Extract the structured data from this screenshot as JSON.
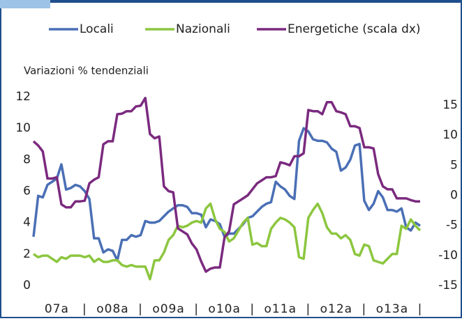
{
  "chart_data": {
    "type": "line",
    "subtitle": "Variazioni % tendenziali",
    "categories": [
      null,
      null,
      null,
      null,
      null,
      "07a",
      null,
      null,
      null,
      null,
      null,
      "|",
      null,
      null,
      null,
      null,
      null,
      "o08a",
      null,
      null,
      null,
      null,
      null,
      "|",
      null,
      null,
      null,
      null,
      null,
      "o09a",
      null,
      null,
      null,
      null,
      null,
      "|",
      null,
      null,
      null,
      null,
      null,
      "o10a",
      null,
      null,
      null,
      null,
      null,
      "|",
      null,
      null,
      null,
      null,
      null,
      "o11a",
      null,
      null,
      null,
      null,
      null,
      "|",
      null,
      null,
      null,
      null,
      null,
      "o12a",
      null,
      null,
      null,
      null,
      null,
      "|",
      null,
      null,
      null,
      null,
      null,
      "o13a",
      null,
      null,
      null,
      null,
      null,
      "|"
    ],
    "series": [
      {
        "name": "Locali",
        "color": "#4a6fb5",
        "axis": "y",
        "values": [
          3.1,
          5.7,
          5.6,
          6.4,
          6.6,
          6.8,
          7.7,
          6.1,
          6.2,
          6.4,
          6.3,
          6.0,
          5.5,
          3.0,
          3.0,
          2.1,
          2.3,
          2.2,
          1.6,
          2.9,
          2.9,
          3.2,
          3.1,
          3.2,
          4.1,
          4.0,
          4.0,
          4.1,
          4.4,
          4.7,
          4.9,
          5.1,
          5.1,
          5.0,
          4.6,
          4.6,
          4.5,
          3.7,
          4.2,
          4.1,
          3.9,
          3.1,
          3.3,
          3.3,
          3.6,
          3.9,
          4.3,
          4.4,
          4.7,
          5.0,
          5.2,
          5.3,
          6.6,
          6.3,
          6.1,
          5.7,
          5.5,
          9.2,
          10.0,
          9.8,
          9.3,
          9.2,
          9.2,
          9.1,
          8.7,
          8.5,
          7.3,
          7.5,
          8.0,
          8.9,
          9.0,
          5.4,
          4.8,
          5.2,
          6.0,
          5.6,
          4.8,
          4.8,
          4.7,
          4.9,
          3.7,
          3.5,
          4.0,
          3.8
        ]
      },
      {
        "name": "Nazionali",
        "color": "#8cc63f",
        "axis": "y",
        "values": [
          2.0,
          1.8,
          1.9,
          1.9,
          1.7,
          1.5,
          1.8,
          1.7,
          1.9,
          1.9,
          1.9,
          1.8,
          1.9,
          1.5,
          1.7,
          1.5,
          1.5,
          1.6,
          1.6,
          1.3,
          1.2,
          1.3,
          1.2,
          1.2,
          1.2,
          0.4,
          1.6,
          1.6,
          2.1,
          2.9,
          3.2,
          3.8,
          3.7,
          3.8,
          4.0,
          4.1,
          4.0,
          4.9,
          5.2,
          4.2,
          3.6,
          3.4,
          2.8,
          3.0,
          3.5,
          4.0,
          4.3,
          2.6,
          2.7,
          2.5,
          2.5,
          3.6,
          4.0,
          4.3,
          4.2,
          4.0,
          3.7,
          1.8,
          1.7,
          4.3,
          4.8,
          5.2,
          4.6,
          3.7,
          3.3,
          3.3,
          3.0,
          3.2,
          2.9,
          2.0,
          1.9,
          2.6,
          2.5,
          1.6,
          1.5,
          1.4,
          1.7,
          2.0,
          2.0,
          3.8,
          3.6,
          4.2,
          3.8,
          3.5
        ]
      },
      {
        "name": "Energetiche (scala dx)",
        "color": "#7b2a7f",
        "axis": "y2",
        "values": [
          9.0,
          8.3,
          7.3,
          2.8,
          2.8,
          3.0,
          -1.5,
          -2.0,
          -2.0,
          -1.0,
          -1.0,
          -0.9,
          2.0,
          2.6,
          3.0,
          8.5,
          9.0,
          9.0,
          13.5,
          13.6,
          14.0,
          14.0,
          14.8,
          14.9,
          16.2,
          10.2,
          9.5,
          9.8,
          1.5,
          0.7,
          0.5,
          -5.5,
          -6.0,
          -6.5,
          -8.0,
          -9.0,
          -11.0,
          -12.7,
          -12.2,
          -12.0,
          -12.0,
          -7.0,
          -6.0,
          -1.5,
          -1.0,
          -0.5,
          0.0,
          1.0,
          2.0,
          2.5,
          3.0,
          3.0,
          3.2,
          5.5,
          5.3,
          5.0,
          6.5,
          6.5,
          7.0,
          14.2,
          14.0,
          14.0,
          13.5,
          15.5,
          15.5,
          14.0,
          13.8,
          13.5,
          11.5,
          11.5,
          11.2,
          8.0,
          8.0,
          7.8,
          3.5,
          1.5,
          1.0,
          1.0,
          -0.5,
          -0.5,
          -0.5,
          -0.8,
          -1.0,
          -1.0
        ]
      }
    ],
    "ylim": [
      0,
      12
    ],
    "yticks": [
      0,
      2,
      4,
      6,
      8,
      10,
      12
    ],
    "y2lim": [
      -15,
      16.4
    ],
    "y2ticks": [
      -15,
      -10,
      -5,
      0,
      5,
      10,
      15
    ],
    "legend": "top"
  }
}
